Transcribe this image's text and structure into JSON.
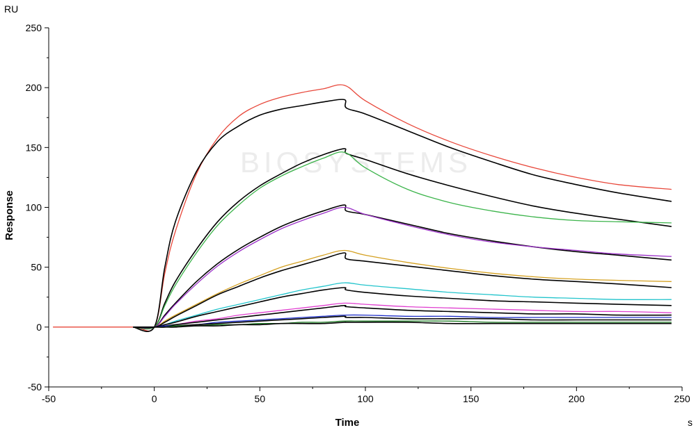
{
  "chart_data": {
    "type": "line",
    "title": "",
    "xlabel": "Time",
    "ylabel": "Response",
    "x_unit": "s",
    "y_unit": "RU",
    "xlim": [
      -50,
      250
    ],
    "ylim": [
      -50,
      250
    ],
    "x_ticks": [
      "-50",
      "0",
      "50",
      "100",
      "150",
      "200",
      "250"
    ],
    "y_ticks": [
      "-50",
      "0",
      "50",
      "100",
      "150",
      "200",
      "250"
    ],
    "grid": false,
    "legend": "none",
    "watermark": "BIOSYSTEMS",
    "series": [
      {
        "color": "#e8473a",
        "x": [
          -48,
          -30,
          -10,
          0,
          5,
          10,
          20,
          30,
          40,
          50,
          60,
          70,
          80,
          90,
          100,
          120,
          140,
          160,
          180,
          200,
          220,
          245
        ],
        "y": [
          0,
          0,
          0,
          0,
          45,
          80,
          128,
          158,
          176,
          186,
          192,
          196,
          199,
          202,
          189,
          170,
          155,
          143,
          133,
          125,
          119,
          115
        ]
      },
      {
        "color": "#000000",
        "x": [
          -10,
          0,
          5,
          10,
          20,
          30,
          40,
          50,
          60,
          70,
          80,
          90,
          91,
          100,
          120,
          140,
          160,
          180,
          200,
          220,
          245
        ],
        "y": [
          0,
          0,
          50,
          88,
          130,
          155,
          168,
          177,
          182,
          185,
          188,
          190,
          183,
          178,
          164,
          150,
          138,
          127,
          119,
          112,
          105
        ]
      },
      {
        "color": "#000000",
        "x": [
          -10,
          0,
          5,
          10,
          20,
          30,
          40,
          50,
          60,
          70,
          80,
          90,
          91,
          100,
          120,
          140,
          160,
          180,
          200,
          220,
          245
        ],
        "y": [
          0,
          0,
          20,
          38,
          65,
          88,
          105,
          118,
          128,
          137,
          144,
          149,
          145,
          140,
          128,
          118,
          109,
          101,
          95,
          90,
          84
        ]
      },
      {
        "color": "#3cb44b",
        "x": [
          -10,
          0,
          5,
          10,
          20,
          30,
          40,
          50,
          60,
          70,
          80,
          90,
          100,
          120,
          140,
          160,
          180,
          200,
          220,
          245
        ],
        "y": [
          0,
          0,
          18,
          35,
          62,
          85,
          102,
          116,
          126,
          134,
          141,
          146,
          133,
          115,
          104,
          97,
          92,
          89,
          88,
          87
        ]
      },
      {
        "color": "#000000",
        "x": [
          -10,
          0,
          5,
          10,
          20,
          30,
          40,
          50,
          60,
          70,
          80,
          90,
          91,
          100,
          120,
          140,
          160,
          180,
          200,
          220,
          245
        ],
        "y": [
          0,
          0,
          10,
          20,
          38,
          53,
          65,
          75,
          84,
          91,
          97,
          102,
          97,
          94,
          86,
          78,
          72,
          67,
          63,
          60,
          56
        ]
      },
      {
        "color": "#9b30c8",
        "x": [
          -10,
          0,
          5,
          10,
          20,
          30,
          40,
          50,
          60,
          70,
          80,
          90,
          100,
          120,
          140,
          160,
          180,
          200,
          220,
          245
        ],
        "y": [
          0,
          0,
          9,
          19,
          36,
          51,
          63,
          73,
          82,
          89,
          95,
          100,
          94,
          85,
          77,
          71,
          67,
          64,
          61,
          59
        ]
      },
      {
        "color": "#d4a020",
        "x": [
          -10,
          0,
          5,
          10,
          20,
          30,
          40,
          50,
          60,
          70,
          80,
          90,
          100,
          120,
          140,
          160,
          180,
          200,
          220,
          245
        ],
        "y": [
          0,
          0,
          5,
          10,
          19,
          28,
          36,
          43,
          50,
          55,
          60,
          64,
          60,
          54,
          49,
          45,
          42,
          40,
          39,
          38
        ]
      },
      {
        "color": "#000000",
        "x": [
          -10,
          0,
          5,
          10,
          20,
          30,
          40,
          50,
          60,
          70,
          80,
          90,
          91,
          100,
          120,
          140,
          160,
          180,
          200,
          220,
          245
        ],
        "y": [
          0,
          0,
          4,
          9,
          18,
          27,
          34,
          41,
          47,
          52,
          57,
          62,
          57,
          55,
          51,
          47,
          43,
          40,
          38,
          36,
          33
        ]
      },
      {
        "color": "#22c4cc",
        "x": [
          -10,
          0,
          5,
          10,
          20,
          30,
          40,
          50,
          60,
          70,
          80,
          90,
          100,
          120,
          140,
          160,
          180,
          200,
          220,
          245
        ],
        "y": [
          0,
          0,
          2,
          5,
          10,
          15,
          19,
          23,
          27,
          31,
          34,
          37,
          35,
          32,
          29,
          27,
          25,
          24,
          23,
          23
        ]
      },
      {
        "color": "#000000",
        "x": [
          -10,
          0,
          5,
          10,
          20,
          30,
          40,
          50,
          60,
          70,
          80,
          90,
          91,
          100,
          120,
          140,
          160,
          180,
          200,
          220,
          245
        ],
        "y": [
          0,
          0,
          2,
          4,
          9,
          13,
          17,
          21,
          25,
          28,
          31,
          33,
          31,
          29,
          26,
          24,
          22,
          21,
          20,
          19,
          18
        ]
      },
      {
        "color": "#e040d0",
        "x": [
          -10,
          0,
          5,
          10,
          20,
          30,
          40,
          50,
          60,
          70,
          80,
          90,
          100,
          120,
          140,
          160,
          180,
          200,
          220,
          245
        ],
        "y": [
          0,
          0,
          1,
          2,
          5,
          7,
          10,
          12,
          14,
          16,
          18,
          20,
          19,
          17,
          16,
          15,
          14,
          13,
          13,
          12
        ]
      },
      {
        "color": "#000000",
        "x": [
          -10,
          0,
          5,
          10,
          20,
          30,
          40,
          50,
          60,
          70,
          80,
          90,
          91,
          100,
          120,
          140,
          160,
          180,
          200,
          220,
          245
        ],
        "y": [
          0,
          0,
          1,
          2,
          4,
          6,
          8,
          10,
          12,
          14,
          16,
          18,
          17,
          16,
          14,
          13,
          12,
          11,
          11,
          10,
          10
        ]
      },
      {
        "color": "#2030c8",
        "x": [
          -10,
          0,
          5,
          10,
          20,
          30,
          40,
          50,
          60,
          70,
          80,
          90,
          100,
          120,
          140,
          160,
          180,
          200,
          220,
          245
        ],
        "y": [
          0,
          0,
          1,
          1,
          2,
          4,
          5,
          6,
          7,
          8,
          9,
          10,
          10,
          9,
          9,
          8,
          8,
          8,
          8,
          8
        ]
      },
      {
        "color": "#000000",
        "x": [
          -10,
          0,
          5,
          10,
          20,
          30,
          40,
          50,
          60,
          70,
          80,
          90,
          91,
          100,
          120,
          140,
          160,
          180,
          200,
          220,
          245
        ],
        "y": [
          0,
          0,
          0,
          1,
          2,
          3,
          4,
          5,
          6,
          7,
          8,
          9,
          8,
          8,
          7,
          7,
          7,
          6,
          6,
          6,
          6
        ]
      },
      {
        "color": "#1a7a20",
        "x": [
          -10,
          0,
          5,
          10,
          20,
          30,
          40,
          50,
          60,
          70,
          80,
          90,
          100,
          120,
          140,
          160,
          180,
          200,
          220,
          245
        ],
        "y": [
          0,
          0,
          0,
          1,
          1,
          2,
          2,
          3,
          3,
          4,
          4,
          5,
          5,
          5,
          5,
          4,
          4,
          4,
          4,
          4
        ]
      },
      {
        "color": "#000000",
        "x": [
          -10,
          0,
          5,
          10,
          20,
          30,
          40,
          50,
          60,
          70,
          80,
          90,
          91,
          100,
          120,
          140,
          160,
          180,
          200,
          220,
          245
        ],
        "y": [
          0,
          0,
          0,
          0,
          1,
          1,
          2,
          2,
          3,
          3,
          3,
          4,
          4,
          4,
          4,
          3,
          3,
          3,
          3,
          3,
          3
        ]
      }
    ]
  }
}
